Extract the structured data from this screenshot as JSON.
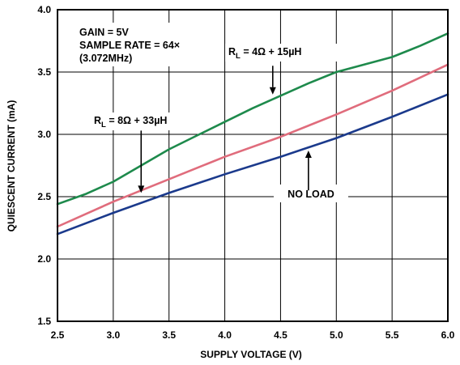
{
  "chart_data": {
    "type": "line",
    "title": "",
    "xlabel": "SUPPLY VOLTAGE (V)",
    "ylabel": "QUIESCENT CURRENT (mA)",
    "xlim": [
      2.5,
      6.0
    ],
    "ylim": [
      1.5,
      4.0
    ],
    "x_ticks": [
      "2.5",
      "3.0",
      "3.5",
      "4.0",
      "4.5",
      "5.0",
      "5.5",
      "6.0"
    ],
    "y_ticks": [
      "1.5",
      "2.0",
      "2.5",
      "3.0",
      "3.5",
      "4.0"
    ],
    "grid": true,
    "series": [
      {
        "name": "RL = 4Ω + 15µH",
        "color": "#1e8a4c",
        "x": [
          2.5,
          2.75,
          3.0,
          3.25,
          3.5,
          3.75,
          4.0,
          4.25,
          4.5,
          4.75,
          5.0,
          5.25,
          5.5,
          5.75,
          6.0
        ],
        "y": [
          2.44,
          2.52,
          2.62,
          2.75,
          2.88,
          2.99,
          3.1,
          3.21,
          3.31,
          3.41,
          3.5,
          3.56,
          3.62,
          3.71,
          3.81
        ]
      },
      {
        "name": "RL = 8Ω + 33µH",
        "color": "#e06c7c",
        "x": [
          2.5,
          3.0,
          3.5,
          4.0,
          4.5,
          5.0,
          5.5,
          6.0
        ],
        "y": [
          2.26,
          2.46,
          2.64,
          2.82,
          2.98,
          3.16,
          3.35,
          3.56
        ]
      },
      {
        "name": "NO LOAD",
        "color": "#1b3a8c",
        "x": [
          2.5,
          3.0,
          3.5,
          4.0,
          4.5,
          5.0,
          5.5,
          6.0
        ],
        "y": [
          2.2,
          2.37,
          2.53,
          2.68,
          2.82,
          2.97,
          3.14,
          3.32
        ]
      }
    ],
    "annotations": {
      "conditions": [
        "GAIN = 5V",
        "SAMPLE RATE = 64×",
        "(3.072MHz)"
      ],
      "label_4ohm": {
        "r": "R",
        "sub": "L",
        "rest": " = 4Ω + 15µH",
        "arrow_x": 4.43,
        "arrow_from_y": 3.55,
        "arrow_to_y": 3.32
      },
      "label_8ohm": {
        "r": "R",
        "sub": "L",
        "rest": " = 8Ω + 33µH",
        "arrow_x": 3.25,
        "arrow_from_y": 3.03,
        "arrow_to_y": 2.53
      },
      "label_noload": {
        "text": "NO LOAD",
        "arrow_x": 4.75,
        "arrow_from_y": 2.55,
        "arrow_to_y": 2.87
      }
    }
  }
}
